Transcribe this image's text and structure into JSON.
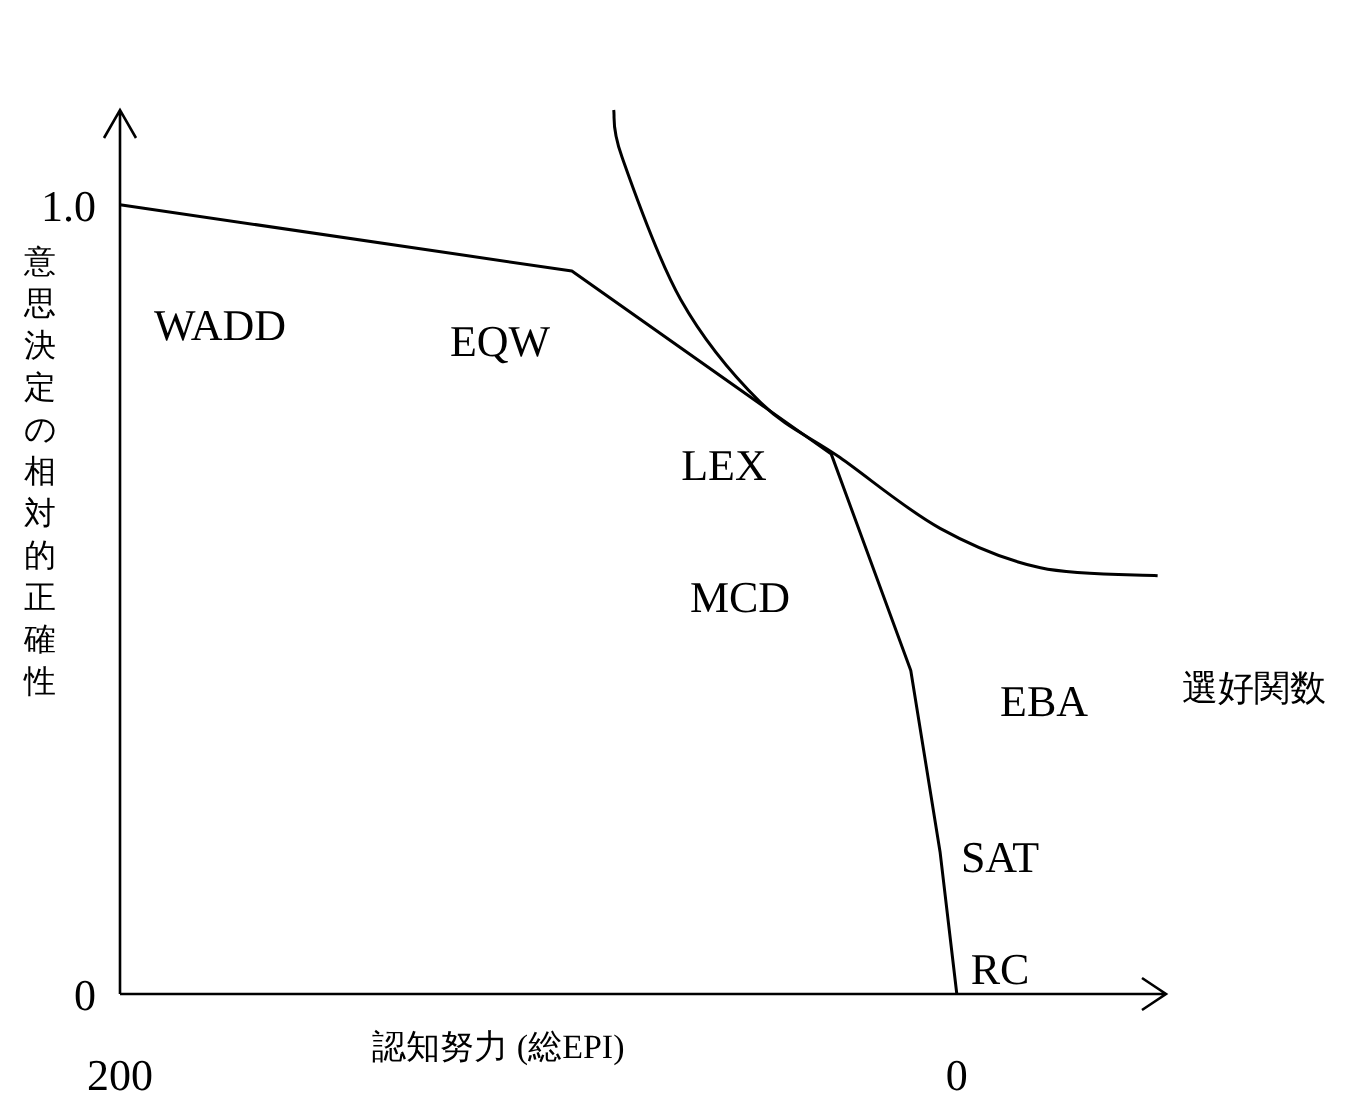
{
  "chart_data": {
    "type": "line",
    "xlabel": "認知努力 (総EPI)",
    "ylabel": "意思決定の相対的正確性",
    "xlim": [
      200,
      -50
    ],
    "ylim": [
      0,
      1.12
    ],
    "xticks": [
      200,
      0
    ],
    "yticks": [
      0,
      {
        "value": 1,
        "label": "1.0"
      }
    ],
    "series": [
      {
        "color": "#000000",
        "x": [
          200,
          92,
          30,
          11,
          4,
          0
        ],
        "values": [
          1.0,
          0.916,
          0.684,
          0.41,
          0.18,
          0
        ]
      },
      {
        "name": "選好関数",
        "color": "#000000",
        "x": [
          82,
          80,
          66,
          47,
          28,
          4,
          -20,
          -48
        ],
        "values": [
          1.12,
          1.06,
          0.88,
          0.75,
          0.68,
          0.59,
          0.54,
          0.53
        ]
      }
    ],
    "annotations": [
      "WADD",
      "EQW",
      "LEX",
      "MCD",
      "EBA",
      "SAT",
      "RC"
    ]
  }
}
